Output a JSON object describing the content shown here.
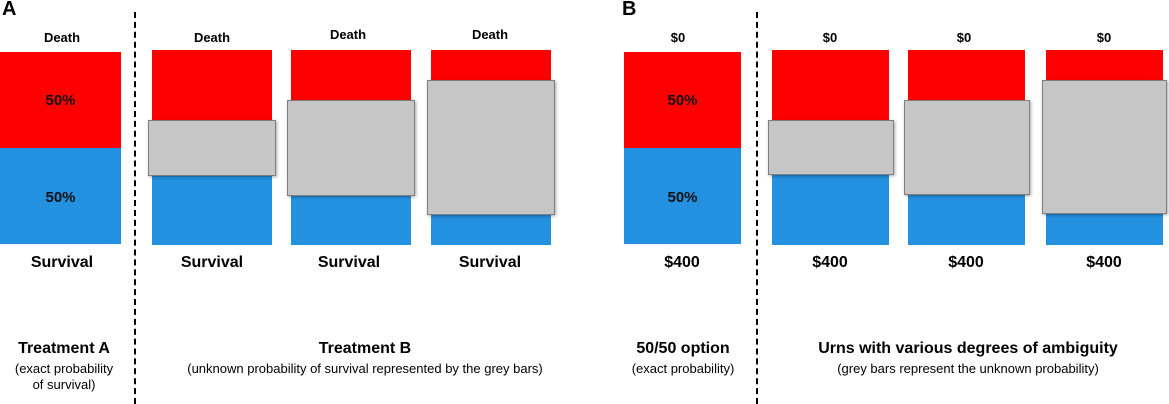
{
  "panels": {
    "a": {
      "letter": "A",
      "top_label": "Death",
      "bottom_label": "Survival",
      "pct_top": "50%",
      "pct_bottom": "50%",
      "left_caption": {
        "title": "Treatment A",
        "sub1": "(exact probability",
        "sub2": "of survival)"
      },
      "right_caption": {
        "title": "Treatment B",
        "sub": "(unknown probability of survival represented by the grey bars)"
      }
    },
    "b": {
      "letter": "B",
      "top_label": "$0",
      "bottom_label": "$400",
      "pct_top": "50%",
      "pct_bottom": "50%",
      "left_caption": {
        "title": "50/50 option",
        "sub": "(exact probability)"
      },
      "right_caption": {
        "title": "Urns with various degrees of ambiguity",
        "sub": "(grey bars represent the unknown probability)"
      }
    }
  },
  "colors": {
    "red": "#ff0000",
    "blue": "#2490e0",
    "grey": "#c6c6c6"
  }
}
